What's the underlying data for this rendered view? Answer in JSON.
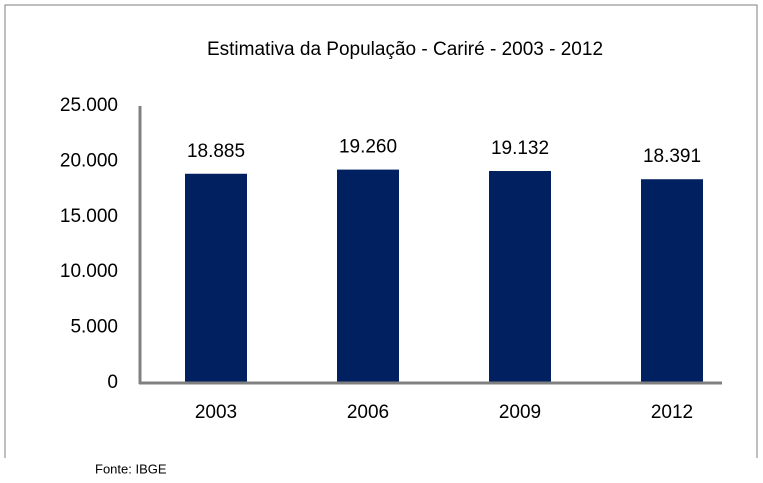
{
  "chart_data": {
    "type": "bar",
    "title": "Estimativa da População - Cariré - 2003 - 2012",
    "categories": [
      "2003",
      "2006",
      "2009",
      "2012"
    ],
    "values": [
      18885,
      19260,
      19132,
      18391
    ],
    "value_labels": [
      "18.885",
      "19.260",
      "19.132",
      "18.391"
    ],
    "color": "#002060",
    "ylim": [
      0,
      25000
    ],
    "yticks": [
      0,
      {
        "value": 5000,
        "label": "5.000"
      },
      {
        "value": 10000,
        "label": "10.000"
      },
      {
        "value": 15000,
        "label": "15.000"
      },
      {
        "value": 20000,
        "label": "20.000"
      },
      {
        "value": 25000,
        "label": "25.000"
      }
    ],
    "grid": false,
    "source": "Fonte: IBGE"
  }
}
